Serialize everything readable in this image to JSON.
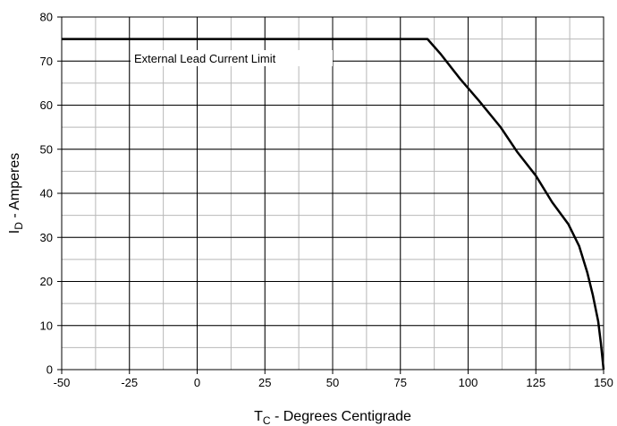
{
  "chart_data": {
    "type": "line",
    "xlabel": "T",
    "xlabel_sub": "C",
    "xlabel_rest": " - Degrees Centigrade",
    "ylabel": "I",
    "ylabel_sub": "D",
    "ylabel_rest": " - Amperes",
    "xlim": [
      -50,
      150
    ],
    "ylim": [
      0,
      80
    ],
    "x_ticks": [
      -50,
      -25,
      0,
      25,
      50,
      75,
      100,
      125,
      150
    ],
    "x_tick_labels": [
      "-50",
      "-25",
      "0",
      "25",
      "50",
      "75",
      "100",
      "125",
      "150"
    ],
    "x_minor_step": 12.5,
    "y_ticks": [
      0,
      10,
      20,
      30,
      40,
      50,
      60,
      70,
      80
    ],
    "y_tick_labels": [
      "0",
      "10",
      "20",
      "30",
      "40",
      "50",
      "60",
      "70",
      "80"
    ],
    "y_minor_step": 5,
    "grid": true,
    "annotation": "External Lead Current Limit",
    "series": [
      {
        "color": "#000000",
        "x": [
          -50,
          85,
          90,
          97,
          104,
          112,
          118,
          125,
          131,
          137,
          141,
          144,
          146,
          148,
          149,
          150
        ],
        "y": [
          75,
          75,
          71.5,
          66,
          61,
          55,
          49.5,
          44,
          38,
          33,
          28,
          22,
          17,
          11,
          6,
          0
        ]
      }
    ]
  }
}
